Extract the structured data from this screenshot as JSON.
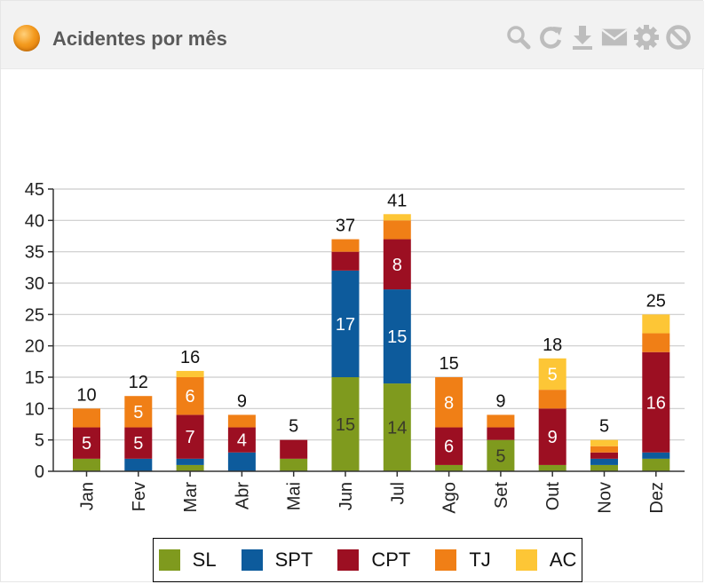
{
  "panel": {
    "title": "Acidentes por mês",
    "tools": [
      "zoom-icon",
      "refresh-icon",
      "download-icon",
      "mail-icon",
      "settings-icon",
      "close-icon"
    ]
  },
  "chart_data": {
    "type": "bar",
    "stacked": true,
    "categories": [
      "Jan",
      "Fev",
      "Mar",
      "Abr",
      "Mai",
      "Jun",
      "Jul",
      "Ago",
      "Set",
      "Out",
      "Nov",
      "Dez"
    ],
    "series": [
      {
        "name": "SL",
        "color": "#7f9a1e",
        "values": [
          2,
          0,
          1,
          0,
          2,
          15,
          14,
          1,
          5,
          1,
          1,
          2
        ]
      },
      {
        "name": "SPT",
        "color": "#0d5b9c",
        "values": [
          0,
          2,
          1,
          3,
          0,
          17,
          15,
          0,
          0,
          0,
          1,
          1
        ]
      },
      {
        "name": "CPT",
        "color": "#9c0f22",
        "values": [
          5,
          5,
          7,
          4,
          3,
          3,
          8,
          6,
          2,
          9,
          1,
          16
        ]
      },
      {
        "name": "TJ",
        "color": "#f07f16",
        "values": [
          3,
          5,
          6,
          2,
          0,
          2,
          3,
          8,
          2,
          3,
          1,
          3
        ]
      },
      {
        "name": "AC",
        "color": "#fdc636",
        "values": [
          0,
          0,
          1,
          0,
          0,
          0,
          1,
          0,
          0,
          5,
          1,
          3
        ]
      }
    ],
    "totals": [
      10,
      12,
      16,
      9,
      5,
      37,
      41,
      15,
      9,
      18,
      5,
      25
    ],
    "segment_labels": [
      {
        "cat": 0,
        "series": 2,
        "text": "5"
      },
      {
        "cat": 1,
        "series": 2,
        "text": "5"
      },
      {
        "cat": 1,
        "series": 3,
        "text": "5"
      },
      {
        "cat": 2,
        "series": 2,
        "text": "7"
      },
      {
        "cat": 2,
        "series": 3,
        "text": "6"
      },
      {
        "cat": 3,
        "series": 2,
        "text": "4"
      },
      {
        "cat": 5,
        "series": 0,
        "text": "15"
      },
      {
        "cat": 5,
        "series": 1,
        "text": "17"
      },
      {
        "cat": 6,
        "series": 0,
        "text": "14"
      },
      {
        "cat": 6,
        "series": 1,
        "text": "15"
      },
      {
        "cat": 6,
        "series": 2,
        "text": "8"
      },
      {
        "cat": 7,
        "series": 2,
        "text": "6"
      },
      {
        "cat": 7,
        "series": 3,
        "text": "8"
      },
      {
        "cat": 8,
        "series": 0,
        "text": "5"
      },
      {
        "cat": 9,
        "series": 2,
        "text": "9"
      },
      {
        "cat": 9,
        "series": 4,
        "text": "5"
      },
      {
        "cat": 11,
        "series": 2,
        "text": "16"
      }
    ],
    "ylim": [
      0,
      45
    ],
    "yticks": [
      0,
      5,
      10,
      15,
      20,
      25,
      30,
      35,
      40,
      45
    ],
    "grid": true,
    "legend": "bottom"
  }
}
